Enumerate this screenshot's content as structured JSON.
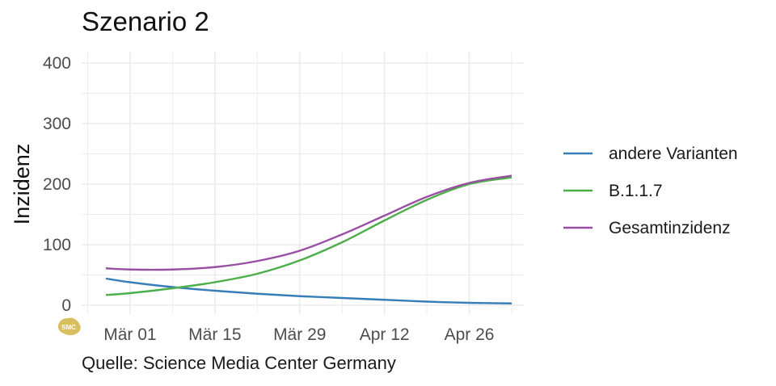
{
  "chart_data": {
    "type": "line",
    "title": "Szenario 2",
    "ylabel": "Inzidenz",
    "xlabel": "",
    "ylim": [
      0,
      400
    ],
    "yticks": [
      0,
      100,
      200,
      300,
      400
    ],
    "xlim_days": [
      -8,
      65
    ],
    "xticks": [
      {
        "label": "Mär 01",
        "day": 0
      },
      {
        "label": "Mär 15",
        "day": 14
      },
      {
        "label": "Mär 29",
        "day": 28
      },
      {
        "label": "Apr 12",
        "day": 42
      },
      {
        "label": "Apr 26",
        "day": 56
      }
    ],
    "grid": true,
    "legend_position": "right",
    "series": [
      {
        "name": "andere Varianten",
        "color": "#377eb8",
        "x": [
          -4,
          0,
          7,
          14,
          21,
          28,
          35,
          42,
          49,
          56,
          63
        ],
        "values": [
          44,
          38,
          30,
          24,
          19,
          15,
          12,
          9,
          6,
          4,
          3
        ]
      },
      {
        "name": "B.1.1.7",
        "color": "#4daf4a",
        "x": [
          -4,
          0,
          7,
          14,
          21,
          28,
          35,
          42,
          49,
          56,
          63
        ],
        "values": [
          17,
          20,
          28,
          38,
          52,
          74,
          104,
          140,
          174,
          200,
          211
        ]
      },
      {
        "name": "Gesamtinzidenz",
        "color": "#984ea3",
        "x": [
          -4,
          0,
          7,
          14,
          21,
          28,
          35,
          42,
          49,
          56,
          63
        ],
        "values": [
          61,
          59,
          59,
          63,
          73,
          90,
          117,
          148,
          179,
          202,
          214
        ]
      }
    ]
  },
  "caption": "Quelle: Science Media Center Germany",
  "logo_text": "SMC"
}
